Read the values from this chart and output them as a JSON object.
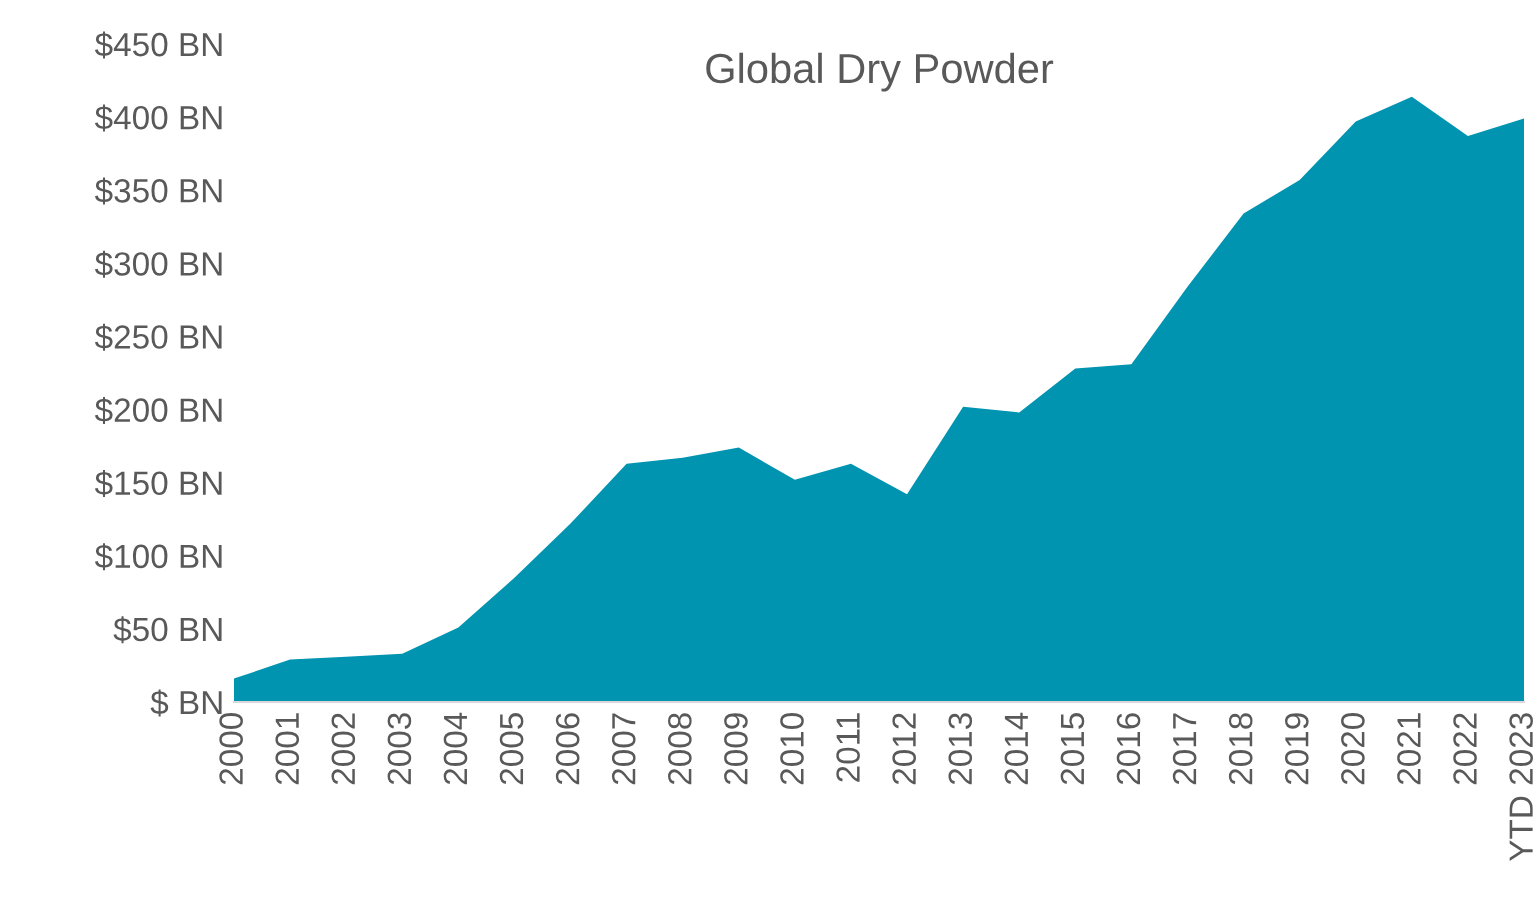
{
  "chart_data": {
    "type": "area",
    "title": "Global Dry Powder",
    "categories": [
      "2000",
      "2001",
      "2002",
      "2003",
      "2004",
      "2005",
      "2006",
      "2007",
      "2008",
      "2009",
      "2010",
      "2011",
      "2012",
      "2013",
      "2014",
      "2015",
      "2016",
      "2017",
      "2018",
      "2019",
      "2020",
      "2021",
      "2022",
      "YTD 2023"
    ],
    "series": [
      {
        "color": "#0094b1",
        "values": [
          16,
          29,
          31,
          33,
          51,
          85,
          122,
          163,
          167,
          174,
          152,
          163,
          142,
          202,
          198,
          228,
          231,
          284,
          334,
          357,
          397,
          414,
          387,
          399
        ]
      }
    ],
    "ylim": [
      0,
      450
    ],
    "yticks": [
      {
        "value": 0,
        "label": "$ BN"
      },
      {
        "value": 50,
        "label": "$50 BN"
      },
      {
        "value": 100,
        "label": "$100 BN"
      },
      {
        "value": 150,
        "label": "$150 BN"
      },
      {
        "value": 200,
        "label": "$200 BN"
      },
      {
        "value": 250,
        "label": "$250 BN"
      },
      {
        "value": 300,
        "label": "$300 BN"
      },
      {
        "value": 350,
        "label": "$350 BN"
      },
      {
        "value": 400,
        "label": "$400 BN"
      },
      {
        "value": 450,
        "label": "$450 BN"
      }
    ],
    "grid": false,
    "legend": false
  }
}
